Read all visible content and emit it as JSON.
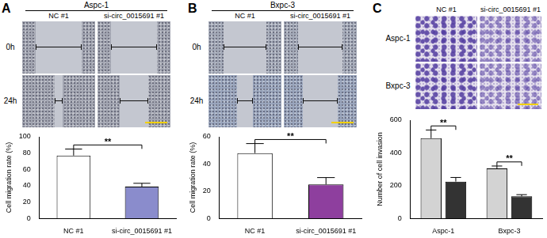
{
  "chart_data": [
    {
      "type": "bar",
      "categories": [
        "NC #1",
        "si-circ_0015691 #1"
      ],
      "values": [
        77,
        39
      ],
      "errors": [
        8,
        4
      ],
      "colors": [
        "#ffffff",
        "#8a8ccc"
      ],
      "y_label": "Cell migration rate (%)",
      "ylim": [
        0,
        100
      ],
      "yticks": [
        0,
        20,
        40,
        60,
        80,
        100
      ],
      "grid": false,
      "annotations": [
        {
          "text": "**",
          "from": 0,
          "to": 1,
          "y": 90
        }
      ]
    },
    {
      "type": "bar",
      "categories": [
        "NC #1",
        "si-circ_0015691 #1"
      ],
      "values": [
        48,
        25
      ],
      "errors": [
        7,
        5
      ],
      "colors": [
        "#ffffff",
        "#8e3f9e"
      ],
      "y_label": "Cell migration rate (%)",
      "ylim": [
        0,
        60
      ],
      "yticks": [
        0,
        20,
        40,
        60
      ],
      "grid": false,
      "annotations": [
        {
          "text": "**",
          "from": 0,
          "to": 1,
          "y": 58
        }
      ]
    },
    {
      "type": "bar",
      "categories": [
        "Aspc-1",
        "Bxpc-3"
      ],
      "series": [
        {
          "color": "#d3d3d3",
          "values": [
            490,
            305
          ],
          "errors": [
            50,
            15
          ]
        },
        {
          "color": "#333333",
          "values": [
            225,
            135
          ],
          "errors": [
            25,
            10
          ]
        }
      ],
      "y_label": "Number of cell invasion",
      "ylim": [
        0,
        600
      ],
      "yticks": [
        0,
        200,
        400,
        600
      ],
      "grid": false,
      "annotations": [
        {
          "text": "**",
          "category": 0,
          "from": 0,
          "to": 1,
          "y": 565
        },
        {
          "text": "**",
          "category": 1,
          "from": 0,
          "to": 1,
          "y": 345
        }
      ]
    }
  ],
  "panels": [
    {
      "letter": "A",
      "title": "Aspc-1",
      "columns": [
        "NC #1",
        "si-circ_0015691 #1"
      ],
      "rows": [
        "0h",
        "24h"
      ]
    },
    {
      "letter": "B",
      "title": "Bxpc-3",
      "columns": [
        "NC #1",
        "si-circ_0015691 #1"
      ],
      "rows": [
        "0h",
        "24h"
      ]
    },
    {
      "letter": "C",
      "columns": [
        "NC #1",
        "si-circ_0015691 #1"
      ],
      "rows": [
        "Aspc-1",
        "Bxpc-3"
      ]
    }
  ]
}
